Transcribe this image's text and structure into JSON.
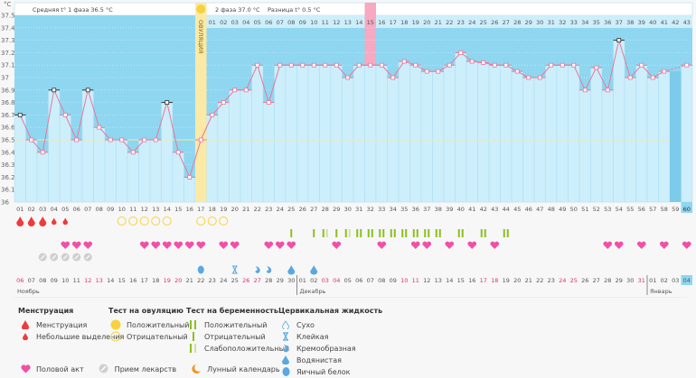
{
  "chart_data": {
    "type": "line",
    "ylabel": "°C",
    "ylim": [
      36,
      37.5
    ],
    "yticks": [
      "37.5",
      "37.4",
      "37.3",
      "37.2",
      "37.1",
      "37",
      "36.9",
      "36.8",
      "36.7",
      "36.6",
      "36.5",
      "36.4",
      "36.3",
      "36.2",
      "36.1",
      "36"
    ],
    "coverline": 36.5,
    "cycle_days": [
      "01",
      "02",
      "03",
      "04",
      "05",
      "06",
      "07",
      "08",
      "09",
      "10",
      "11",
      "12",
      "13",
      "14",
      "15",
      "16",
      "17",
      "18",
      "19",
      "20",
      "21",
      "22",
      "23",
      "24",
      "25",
      "26",
      "27",
      "28",
      "29",
      "30",
      "31",
      "32",
      "33",
      "34",
      "35",
      "36",
      "37",
      "38",
      "39",
      "40",
      "41",
      "42",
      "43",
      "44",
      "45",
      "46",
      "47",
      "48",
      "49",
      "50",
      "51",
      "52",
      "53",
      "54",
      "55",
      "56",
      "57",
      "58",
      "59",
      "60"
    ],
    "phase2_days": [
      "01",
      "02",
      "03",
      "04",
      "05",
      "06",
      "07",
      "08",
      "09",
      "10",
      "11",
      "12",
      "13",
      "14",
      "15",
      "16",
      "17",
      "18",
      "19",
      "20",
      "21",
      "22",
      "23",
      "24",
      "25",
      "26",
      "27",
      "28",
      "29",
      "30",
      "31",
      "32",
      "33",
      "34",
      "35",
      "36",
      "37",
      "38",
      "39",
      "40",
      "41",
      "42",
      "43"
    ],
    "temperatures": [
      36.7,
      36.5,
      36.4,
      36.9,
      36.7,
      36.5,
      36.9,
      36.6,
      36.5,
      36.5,
      36.4,
      36.5,
      36.5,
      36.8,
      36.4,
      36.2,
      36.5,
      36.7,
      36.8,
      36.9,
      36.9,
      37.1,
      36.8,
      37.1,
      37.1,
      37.1,
      37.1,
      37.1,
      37.1,
      37.0,
      37.1,
      37.1,
      37.1,
      37.0,
      37.13,
      37.1,
      37.05,
      37.05,
      37.1,
      37.2,
      37.13,
      37.12,
      37.1,
      37.1,
      37.05,
      37.0,
      37.0,
      37.1,
      37.1,
      37.1,
      36.9,
      37.08,
      36.9,
      37.3,
      37.0,
      37.1,
      37.0,
      37.05,
      null,
      37.1
    ],
    "highlighted_markers": [
      1,
      4,
      7,
      14,
      54
    ],
    "ovulation_day": 17,
    "pink_day": 32,
    "current_day": 60,
    "dates": [
      "06",
      "07",
      "08",
      "09",
      "10",
      "11",
      "12",
      "13",
      "14",
      "15",
      "16",
      "17",
      "18",
      "19",
      "20",
      "21",
      "22",
      "23",
      "24",
      "25",
      "26",
      "27",
      "28",
      "29",
      "30",
      "01",
      "02",
      "03",
      "04",
      "05",
      "06",
      "07",
      "08",
      "09",
      "10",
      "11",
      "12",
      "13",
      "14",
      "15",
      "16",
      "17",
      "18",
      "19",
      "20",
      "21",
      "22",
      "23",
      "24",
      "25",
      "26",
      "27",
      "28",
      "29",
      "30",
      "31",
      "01",
      "02",
      "03",
      "04"
    ],
    "weekend_dates": [
      1,
      7,
      8,
      14,
      15,
      21,
      22,
      28,
      29,
      35,
      36,
      42,
      43,
      49,
      50,
      56
    ],
    "months": [
      {
        "label": "Ноябрь",
        "start": 1
      },
      {
        "label": "Декабрь",
        "start": 26
      },
      {
        "label": "Январь",
        "start": 57
      }
    ],
    "menstruation": {
      "1": "heavy",
      "2": "heavy",
      "3": "heavy",
      "4": "light",
      "5": "light"
    },
    "ovulation_tests_negative": [
      10,
      11,
      12,
      13,
      14,
      17,
      18,
      19
    ],
    "pregnancy_tests": {
      "25": "neg",
      "27": "neg",
      "28": "weak",
      "29": "neg",
      "30": "weak",
      "31": "pos",
      "32": "pos",
      "33": "pos",
      "34": "pos",
      "35": "pos",
      "36": "pos",
      "37": "pos",
      "38": "pos",
      "40": "pos",
      "42": "pos",
      "44": "pos"
    },
    "intercourse": [
      5,
      6,
      7,
      12,
      13,
      14,
      15,
      16,
      17,
      19,
      20,
      23,
      24,
      25,
      29,
      33,
      36,
      37,
      39,
      41,
      43,
      53,
      54,
      56,
      58,
      60
    ],
    "medication": [
      3,
      4,
      5,
      6,
      7
    ],
    "cervical": {
      "17": "egg",
      "20": "sticky",
      "22": "creamy",
      "23": "creamy",
      "25": "watery",
      "27": "watery"
    },
    "moon_day": 32
  },
  "header": {
    "phase1": "Средняя t° 1 фаза 36.5 °C",
    "phase2": "2 фаза 37.0 °C",
    "diff": "Разница t° 0.5 °C",
    "ovulation_label": "ОВУЛЯЦИЯ"
  },
  "legend": {
    "menstruation": {
      "title": "Менструация",
      "items": [
        "Менструация",
        "Небольшие выделения"
      ]
    },
    "ovulation_test": {
      "title": "Тест на овуляцию",
      "items": [
        "Положительный",
        "Отрицательный"
      ]
    },
    "pregnancy_test": {
      "title": "Тест на беременность",
      "items": [
        "Положительный",
        "Отрицательный",
        "Слабоположительный"
      ]
    },
    "cervical": {
      "title": "Цервикальная жидкость",
      "items": [
        "Сухо",
        "Клейкая",
        "Кремообразная",
        "Водянистая",
        "Яичный белок"
      ]
    },
    "other": [
      "Половой акт",
      "Прием лекарств",
      "Лунный календарь"
    ]
  },
  "colors": {
    "bg_dark": "#8fd6f0",
    "bar": "#cdeefb",
    "line": "#e8779a",
    "ovulation": "#fbe9a6",
    "pink": "#f6a9c0",
    "heart": "#f050a8",
    "blood": "#ee3b3b",
    "green": "#8bbf1f",
    "blue": "#5aa8e0",
    "moon": "#f0951a"
  }
}
